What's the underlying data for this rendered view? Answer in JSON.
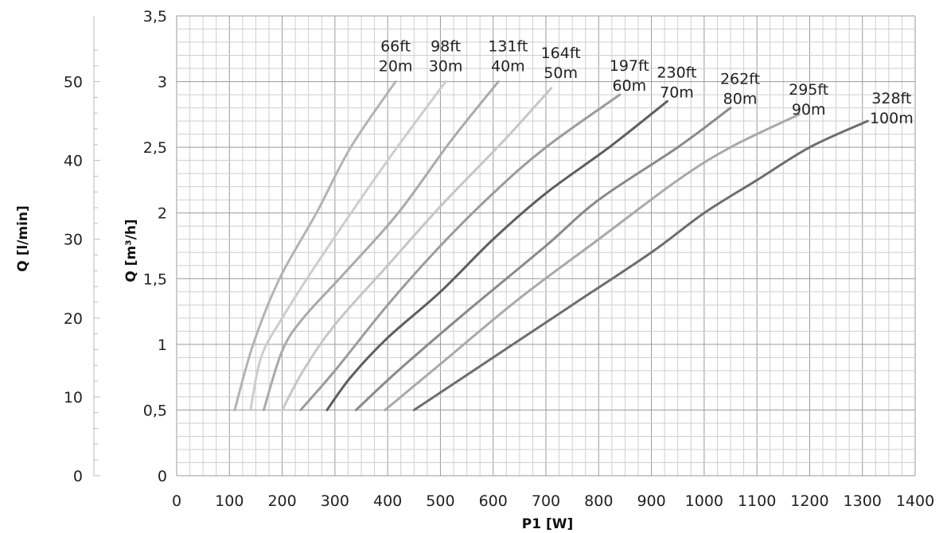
{
  "chart_data": {
    "type": "line",
    "xlabel": "P1 [W]",
    "ylabel": "Q [m³/h]",
    "ylabel_secondary": "Q [l/min]",
    "xlim": [
      0,
      1400
    ],
    "ylim": [
      0,
      3.5
    ],
    "ylim_secondary": [
      0,
      58.33
    ],
    "x_ticks": [
      "0",
      "100",
      "200",
      "300",
      "400",
      "500",
      "600",
      "700",
      "800",
      "900",
      "1000",
      "1100",
      "1200",
      "1300",
      "1400"
    ],
    "y_ticks": [
      "0",
      "0,5",
      "1",
      "1,5",
      "2",
      "2,5",
      "3",
      "3,5"
    ],
    "y_ticks_secondary": [
      "0",
      "10",
      "20",
      "30",
      "40",
      "50"
    ],
    "grid": true,
    "series": [
      {
        "name_ft": "66ft",
        "name_m": "20m",
        "color": "#b3b3b3",
        "points": [
          [
            110,
            0.5
          ],
          [
            145,
            1.0
          ],
          [
            195,
            1.5
          ],
          [
            265,
            2.0
          ],
          [
            330,
            2.5
          ],
          [
            415,
            3.0
          ]
        ]
      },
      {
        "name_ft": "98ft",
        "name_m": "30m",
        "color": "#cdcdcd",
        "points": [
          [
            140,
            0.5
          ],
          [
            160,
            0.9
          ],
          [
            200,
            1.2
          ],
          [
            280,
            1.7
          ],
          [
            400,
            2.4
          ],
          [
            510,
            3.0
          ]
        ]
      },
      {
        "name_ft": "131ft",
        "name_m": "40m",
        "color": "#aaaaaa",
        "points": [
          [
            165,
            0.5
          ],
          [
            200,
            0.95
          ],
          [
            240,
            1.2
          ],
          [
            320,
            1.55
          ],
          [
            420,
            2.0
          ],
          [
            520,
            2.55
          ],
          [
            610,
            3.0
          ]
        ]
      },
      {
        "name_ft": "164ft",
        "name_m": "50m",
        "color": "#c6c6c6",
        "points": [
          [
            200,
            0.5
          ],
          [
            240,
            0.8
          ],
          [
            300,
            1.15
          ],
          [
            400,
            1.6
          ],
          [
            500,
            2.05
          ],
          [
            620,
            2.55
          ],
          [
            710,
            2.95
          ]
        ]
      },
      {
        "name_ft": "197ft",
        "name_m": "60m",
        "color": "#9b9b9b",
        "points": [
          [
            235,
            0.5
          ],
          [
            300,
            0.8
          ],
          [
            400,
            1.3
          ],
          [
            500,
            1.75
          ],
          [
            600,
            2.15
          ],
          [
            700,
            2.5
          ],
          [
            840,
            2.9
          ]
        ]
      },
      {
        "name_ft": "230ft",
        "name_m": "70m",
        "color": "#5e5e5e",
        "points": [
          [
            285,
            0.5
          ],
          [
            330,
            0.75
          ],
          [
            400,
            1.05
          ],
          [
            500,
            1.4
          ],
          [
            600,
            1.8
          ],
          [
            700,
            2.15
          ],
          [
            820,
            2.5
          ],
          [
            930,
            2.85
          ]
        ]
      },
      {
        "name_ft": "262ft",
        "name_m": "80m",
        "color": "#8a8a8a",
        "points": [
          [
            340,
            0.5
          ],
          [
            420,
            0.8
          ],
          [
            550,
            1.25
          ],
          [
            700,
            1.75
          ],
          [
            800,
            2.1
          ],
          [
            950,
            2.5
          ],
          [
            1050,
            2.8
          ]
        ]
      },
      {
        "name_ft": "295ft",
        "name_m": "90m",
        "color": "#a9a9a9",
        "points": [
          [
            395,
            0.5
          ],
          [
            500,
            0.85
          ],
          [
            650,
            1.35
          ],
          [
            800,
            1.8
          ],
          [
            950,
            2.25
          ],
          [
            1050,
            2.5
          ],
          [
            1180,
            2.75
          ]
        ]
      },
      {
        "name_ft": "328ft",
        "name_m": "100m",
        "color": "#6e6e6e",
        "points": [
          [
            450,
            0.5
          ],
          [
            600,
            0.9
          ],
          [
            750,
            1.3
          ],
          [
            900,
            1.7
          ],
          [
            1000,
            2.0
          ],
          [
            1100,
            2.25
          ],
          [
            1200,
            2.5
          ],
          [
            1310,
            2.7
          ]
        ]
      }
    ]
  }
}
